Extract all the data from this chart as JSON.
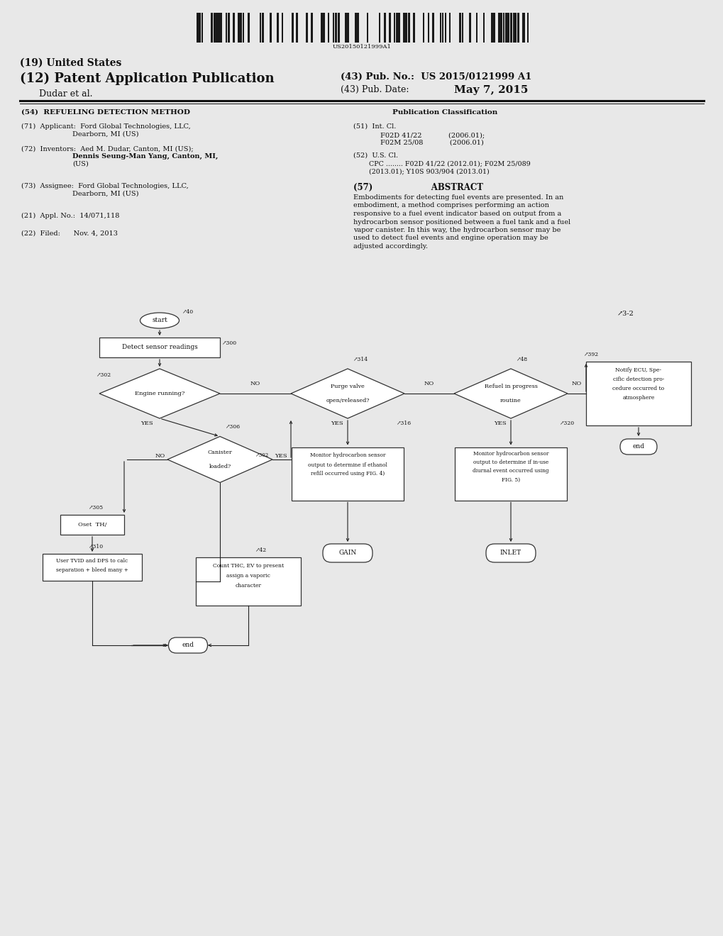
{
  "patent_number": "US 2015/0121999 A1",
  "pub_date": "May 7, 2015",
  "barcode_text": "US20150121999A1",
  "bg_color": "#e8e8e8",
  "header": {
    "us_label": "(19) United States",
    "pub_app_label": "(12) Patent Application Publication",
    "pub_no_label": "(43) Pub. No.:",
    "pub_date_label": "(43) Pub. Date:",
    "dudar_label": "Dudar et al."
  },
  "left_col": {
    "title_tag": "(54)",
    "title_val": "REFUELING DETECTION METHOD",
    "applicant_tag": "(71)",
    "applicant_label": "Applicant:",
    "applicant_line1": "Ford Global Technologies, LLC,",
    "applicant_line2": "Dearborn, MI (US)",
    "inventors_tag": "(72)",
    "inventors_label": "Inventors:",
    "inventors_line1": "Aed M. Dudar, Canton, MI (US);",
    "inventors_line2": "Dennis Seung-Man Yang, Canton, MI,",
    "inventors_line3": "(US)",
    "assignee_tag": "(73)",
    "assignee_label": "Assignee:",
    "assignee_line1": "Ford Global Technologies, LLC,",
    "assignee_line2": "Dearborn, MI (US)",
    "appl_tag": "(21)",
    "appl_label": "Appl. No.:",
    "appl_val": "14/071,118",
    "filed_tag": "(22)",
    "filed_label": "Filed:",
    "filed_val": "Nov. 4, 2013"
  },
  "right_col": {
    "pub_class": "Publication Classification",
    "int_cl_tag": "(51)",
    "int_cl_label": "Int. Cl.",
    "int_cl_line1": "F02D 41/22",
    "int_cl_val1": "(2006.01);",
    "int_cl_line2": "F02M 25/08",
    "int_cl_val2": "(2006.01)",
    "us_cl_tag": "(52)",
    "us_cl_label": "U.S. Cl.",
    "us_cl_line1": "CPC ........ F02D 41/22 (2012.01); F02M 25/089",
    "us_cl_line2": "(2013.01); Y10S 903/904 (2013.01)",
    "abstract_tag": "(57)",
    "abstract_label": "ABSTRACT",
    "abstract_lines": [
      "Embodiments for detecting fuel events are presented. In an",
      "embodiment, a method comprises performing an action",
      "responsive to a fuel event indicator based on output from a",
      "hydrocarbon sensor positioned between a fuel tank and a fuel",
      "vapor canister. In this way, the hydrocarbon sensor may be",
      "used to detect fuel events and engine operation may be",
      "adjusted accordingly."
    ]
  },
  "fc": {
    "start": "start",
    "detect": "Detect sensor readings",
    "engine": [
      "Engine running?"
    ],
    "canister": [
      "Canister",
      "loaded?"
    ],
    "purge": [
      "Purge valve",
      "open/released?"
    ],
    "refuel": [
      "Refuel in progress",
      "routine"
    ],
    "notify": [
      "Notify ECU, Spe-",
      "cific detection pro-",
      "cedure occurred to",
      "atmosphere"
    ],
    "monitor1": [
      "Monitor hydrocarbon sensor",
      "output to determine if ethanol",
      "refill occurred using FIG. 4)"
    ],
    "monitor2": [
      "Monitor hydrocarbon sensor",
      "output to determine if in-use",
      "diurnal event occurred using",
      "FIG. 5)"
    ],
    "oset": "Oset  TH/",
    "user": [
      "User TVID and DPS to calc",
      "separation + bleed many +"
    ],
    "count": [
      "Count THC, EV to present",
      "assign a vaporic",
      "character"
    ],
    "gain": "GAIN",
    "inlet": "INLET",
    "end": "end",
    "refs": {
      "start": "40",
      "detect": "300",
      "engine_no": "302",
      "canister": "306",
      "canister2": "302",
      "purge": "314",
      "purge_yes": "316",
      "refuel": "48",
      "refuel_yes": "320",
      "notify": "392",
      "oset": "305",
      "user": "310",
      "count": "42",
      "diagram": "3-2"
    }
  }
}
